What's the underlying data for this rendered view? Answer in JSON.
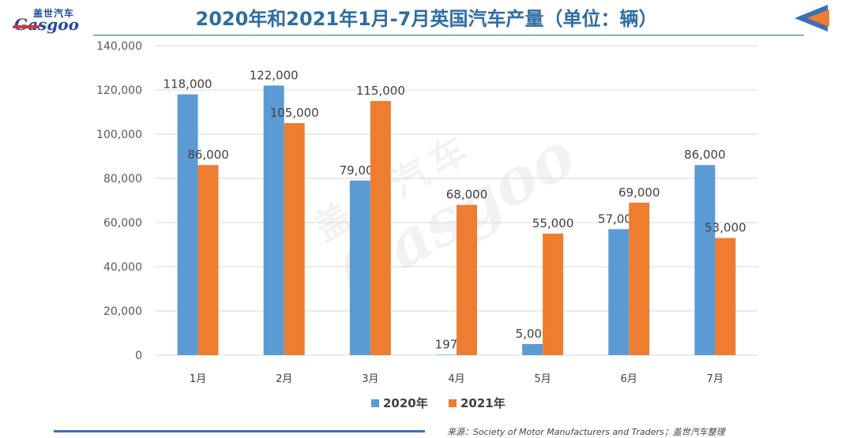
{
  "header": {
    "title": "2020年和2021年1月-7月英国汽车产量（单位：辆）",
    "logo_cn": "盖世汽车",
    "logo_en": "Gasgoo"
  },
  "watermark": {
    "cn": "盖世汽车",
    "en": "Gasgoo"
  },
  "source": "来源：Society of Motor Manufacturers and Traders；盖世汽车整理",
  "colors": {
    "series_2020": "#5b9bd5",
    "series_2021": "#ed7d31",
    "title": "#2e6da4",
    "grid": "#d9d9d9"
  },
  "chart_data": {
    "type": "bar",
    "title": "2020年和2021年1月-7月英国汽车产量（单位：辆）",
    "categories": [
      "1月",
      "2月",
      "3月",
      "4月",
      "5月",
      "6月",
      "7月"
    ],
    "series": [
      {
        "name": "2020年",
        "values": [
          118000,
          122000,
          79000,
          197,
          5000,
          57000,
          86000
        ]
      },
      {
        "name": "2021年",
        "values": [
          86000,
          105000,
          115000,
          68000,
          55000,
          69000,
          53000
        ]
      }
    ],
    "data_labels": [
      [
        "118,000",
        "122,000",
        "79,000",
        "197",
        "5,000",
        "57,000",
        "86,000"
      ],
      [
        "86,000",
        "105,000",
        "115,000",
        "68,000",
        "55,000",
        "69,000",
        "53,000"
      ]
    ],
    "ylim": [
      0,
      140000
    ],
    "yticks": [
      0,
      20000,
      40000,
      60000,
      80000,
      100000,
      120000,
      140000
    ],
    "ytick_labels": [
      "0",
      "20,000",
      "40,000",
      "60,000",
      "80,000",
      "100,000",
      "120,000",
      "140,000"
    ],
    "grid": true,
    "legend_position": "bottom",
    "xlabel": "",
    "ylabel": ""
  }
}
